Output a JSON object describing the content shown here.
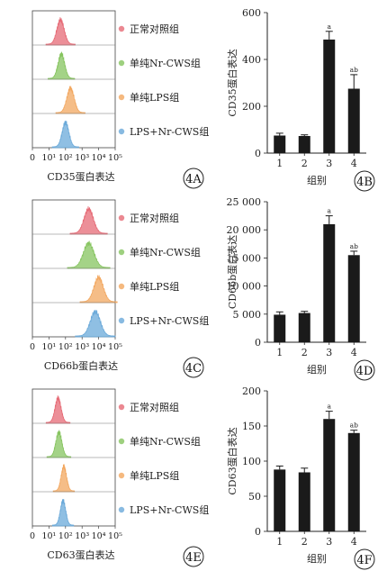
{
  "chart_data": [
    {
      "id": "4A",
      "type": "histogram",
      "panel_label": "4A",
      "xlabel": "CD35蛋白表达",
      "xticks": [
        "0",
        "10¹",
        "10²",
        "10³",
        "10⁴",
        "10⁵"
      ],
      "tracks": [
        {
          "name": "正常对照组",
          "color": "#e66a75",
          "peak_log": 1.7,
          "width_log": 0.22
        },
        {
          "name": "单纯Nr-CWS组",
          "color": "#86c45f",
          "peak_log": 1.75,
          "width_log": 0.2
        },
        {
          "name": "单纯LPS组",
          "color": "#f2a75f",
          "peak_log": 2.3,
          "width_log": 0.22
        },
        {
          "name": "LPS+Nr-CWS组",
          "color": "#6aa9d9",
          "peak_log": 2.0,
          "width_log": 0.2
        }
      ]
    },
    {
      "id": "4B",
      "type": "bar",
      "panel_label": "4B",
      "categories": [
        "1",
        "2",
        "3",
        "4"
      ],
      "values": [
        75,
        73,
        485,
        275
      ],
      "errors": [
        10,
        5,
        35,
        60
      ],
      "annotations": [
        "",
        "",
        "a",
        "ab"
      ],
      "ylabel": "CD35蛋白表达",
      "xlabel": "组别",
      "ylim": [
        0,
        600
      ],
      "yticks": [
        "0",
        "200",
        "400",
        "600"
      ]
    },
    {
      "id": "4C",
      "type": "histogram",
      "panel_label": "4C",
      "xlabel": "CD66b蛋白表达",
      "xticks": [
        "0",
        "10¹",
        "10²",
        "10³",
        "10⁴",
        "10⁵"
      ],
      "tracks": [
        {
          "name": "正常对照组",
          "color": "#e66a75",
          "peak_log": 3.4,
          "width_log": 0.28
        },
        {
          "name": "单纯Nr-CWS组",
          "color": "#86c45f",
          "peak_log": 3.4,
          "width_log": 0.32
        },
        {
          "name": "单纯LPS组",
          "color": "#f2a75f",
          "peak_log": 4.0,
          "width_log": 0.28
        },
        {
          "name": "LPS+Nr-CWS组",
          "color": "#6aa9d9",
          "peak_log": 3.8,
          "width_log": 0.3
        }
      ]
    },
    {
      "id": "4D",
      "type": "bar",
      "panel_label": "4D",
      "categories": [
        "1",
        "2",
        "3",
        "4"
      ],
      "values": [
        4900,
        5200,
        21000,
        15500
      ],
      "errors": [
        500,
        300,
        1500,
        700
      ],
      "annotations": [
        "",
        "",
        "a",
        "ab"
      ],
      "ylabel": "CD66b蛋白表达",
      "xlabel": "组别",
      "ylim": [
        0,
        25000
      ],
      "yticks": [
        "0",
        "5 000",
        "10 000",
        "15 000",
        "20 000",
        "25 000"
      ]
    },
    {
      "id": "4E",
      "type": "histogram",
      "panel_label": "4E",
      "xlabel": "CD63蛋白表达",
      "xticks": [
        "0",
        "10¹",
        "10²",
        "10³",
        "10⁴",
        "10⁵"
      ],
      "tracks": [
        {
          "name": "正常对照组",
          "color": "#e66a75",
          "peak_log": 1.55,
          "width_log": 0.18
        },
        {
          "name": "单纯Nr-CWS组",
          "color": "#86c45f",
          "peak_log": 1.6,
          "width_log": 0.18
        },
        {
          "name": "单纯LPS组",
          "color": "#f2a75f",
          "peak_log": 1.9,
          "width_log": 0.16
        },
        {
          "name": "LPS+Nr-CWS组",
          "color": "#6aa9d9",
          "peak_log": 1.85,
          "width_log": 0.16
        }
      ]
    },
    {
      "id": "4F",
      "type": "bar",
      "panel_label": "4F",
      "categories": [
        "1",
        "2",
        "3",
        "4"
      ],
      "values": [
        88,
        84,
        160,
        140
      ],
      "errors": [
        5,
        6,
        11,
        4
      ],
      "annotations": [
        "",
        "",
        "a",
        "ab"
      ],
      "ylabel": "CD63蛋白表达",
      "xlabel": "组别",
      "ylim": [
        0,
        200
      ],
      "yticks": [
        "0",
        "50",
        "100",
        "150",
        "200"
      ]
    }
  ]
}
